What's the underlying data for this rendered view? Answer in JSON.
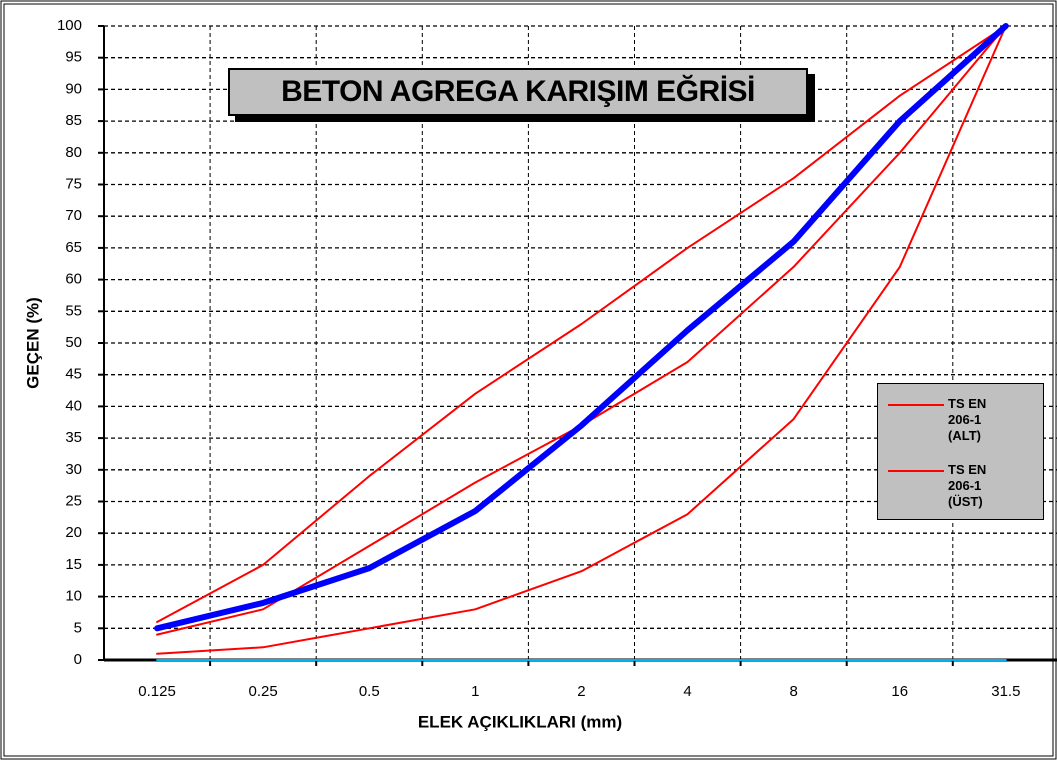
{
  "chart_data": {
    "type": "line",
    "title": "BETON AGREGA KARIŞIM EĞRİSİ",
    "x_label": "ELEK AÇIKLIKLARI (mm)",
    "y_label": "GEÇEN (%)",
    "categories": [
      "0.125",
      "0.25",
      "0.5",
      "1",
      "2",
      "4",
      "8",
      "16",
      "31.5"
    ],
    "series": [
      {
        "color": "#0000ff",
        "values": [
          5,
          9,
          14.5,
          23.5,
          37,
          52,
          66,
          85,
          100
        ]
      },
      {
        "name": "TS EN 206-1 (ALT)",
        "color": "#ff0000",
        "values": [
          1,
          2,
          5,
          8,
          14,
          23,
          38,
          62,
          100
        ]
      },
      {
        "name": "TS EN 206-1 (ÜST)",
        "color": "#ff0000",
        "values": [
          6,
          15,
          29,
          42,
          53,
          65,
          76,
          89,
          100
        ]
      },
      {
        "color": "#ff0000",
        "values": [
          4,
          8,
          18,
          28,
          37,
          47,
          62,
          80,
          100
        ]
      },
      {
        "color": "#00b0f0",
        "values": [
          0,
          0,
          0,
          0,
          0,
          0,
          0,
          0,
          0
        ]
      }
    ],
    "ylim": [
      0,
      100
    ],
    "yticks": [
      0,
      5,
      10,
      15,
      20,
      25,
      30,
      35,
      40,
      45,
      50,
      55,
      60,
      65,
      70,
      75,
      80,
      85,
      90,
      95,
      100
    ],
    "grid": true,
    "legend": "right"
  }
}
